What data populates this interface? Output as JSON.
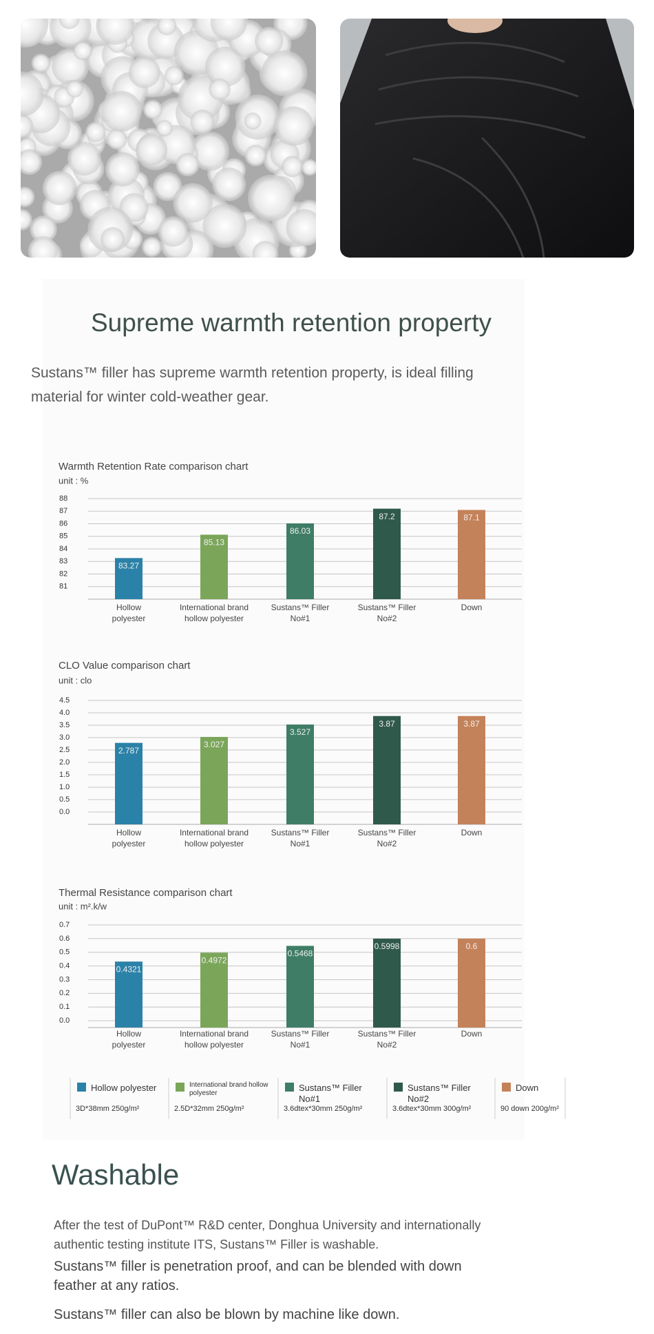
{
  "header": {
    "title": "Supreme warmth retention property",
    "text": "Sustans™ filler has supreme warmth retention property, is ideal filling material for winter cold-weather gear."
  },
  "chart_data": [
    {
      "type": "bar",
      "title": "Warmth Retention Rate comparison chart",
      "unit": "unit : %",
      "categories": [
        "Hollow\npolyester",
        "International brand\nhollow polyester",
        "Sustans™ Filler\nNo#1",
        "Sustans™ Filler\nNo#2",
        "Down"
      ],
      "values": [
        83.27,
        85.13,
        86.03,
        87.2,
        87.1
      ],
      "colors": [
        "#2b82a8",
        "#7ba65a",
        "#3f7d66",
        "#2f594b",
        "#c4825a"
      ],
      "ylim": [
        80,
        88
      ],
      "yticks": [
        81,
        82,
        83,
        84,
        85,
        86,
        87,
        88
      ],
      "grid": true
    },
    {
      "type": "bar",
      "title": "CLO Value comparison chart",
      "unit": "unit : clo",
      "categories": [
        "Hollow\npolyester",
        "International brand\nhollow polyester",
        "Sustans™ Filler\nNo#1",
        "Sustans™ Filler\nNo#2",
        "Down"
      ],
      "values": [
        2.787,
        3.027,
        3.527,
        3.87,
        3.87
      ],
      "colors": [
        "#2b82a8",
        "#7ba65a",
        "#3f7d66",
        "#2f594b",
        "#c4825a"
      ],
      "ylim": [
        -0.5,
        4.5
      ],
      "yticks": [
        {
          "value": 0,
          "label": "0.0"
        },
        0.5,
        {
          "value": 1,
          "label": "1.0"
        },
        1.5,
        {
          "value": 2,
          "label": "2.0"
        },
        2.5,
        {
          "value": 3,
          "label": "3.0"
        },
        3.5,
        {
          "value": 4,
          "label": "4.0"
        },
        4.5
      ],
      "grid": true
    },
    {
      "type": "bar",
      "title": "Thermal Resistance comparison chart",
      "unit": "unit : m².k/w",
      "categories": [
        "Hollow\npolyester",
        "International brand\nhollow polyester",
        "Sustans™ Filler\nNo#1",
        "Sustans™ Filler\nNo#2",
        "Down"
      ],
      "values": [
        0.4321,
        0.4972,
        0.5468,
        0.5998,
        0.6
      ],
      "colors": [
        "#2b82a8",
        "#7ba65a",
        "#3f7d66",
        "#2f594b",
        "#c4825a"
      ],
      "ylim": [
        -0.05,
        0.7
      ],
      "yticks": [
        {
          "value": 0,
          "label": "0.0"
        },
        0.1,
        0.2,
        0.3,
        0.4,
        0.5,
        0.6,
        0.7
      ],
      "grid": true
    }
  ],
  "legend": {
    "items": [
      {
        "name": "Hollow polyester",
        "spec": "3D*38mm 250g/m²",
        "color": "#2b82a8"
      },
      {
        "name": "International brand hollow polyester",
        "spec": "2.5D*32mm 250g/m²",
        "color": "#7ba65a"
      },
      {
        "name": "Sustans™ Filler No#1",
        "spec": "3.6dtex*30mm 250g/m²",
        "color": "#3f7d66"
      },
      {
        "name": "Sustans™ Filler No#2",
        "spec": "3.6dtex*30mm 300g/m²",
        "color": "#2f594b"
      },
      {
        "name": "Down",
        "spec": "90 down 200g/m²",
        "color": "#c4825a"
      }
    ]
  },
  "washable": {
    "title": "Washable",
    "paragraphs": [
      "After the test of DuPont™ R&D center, Donghua University and internationally authentic testing institute ITS, Sustans™ Filler is washable.",
      "Sustans™ filler is penetration proof, and can be blended with down feather at any ratios.",
      "Sustans™ filler can also be blown by machine like down."
    ]
  }
}
